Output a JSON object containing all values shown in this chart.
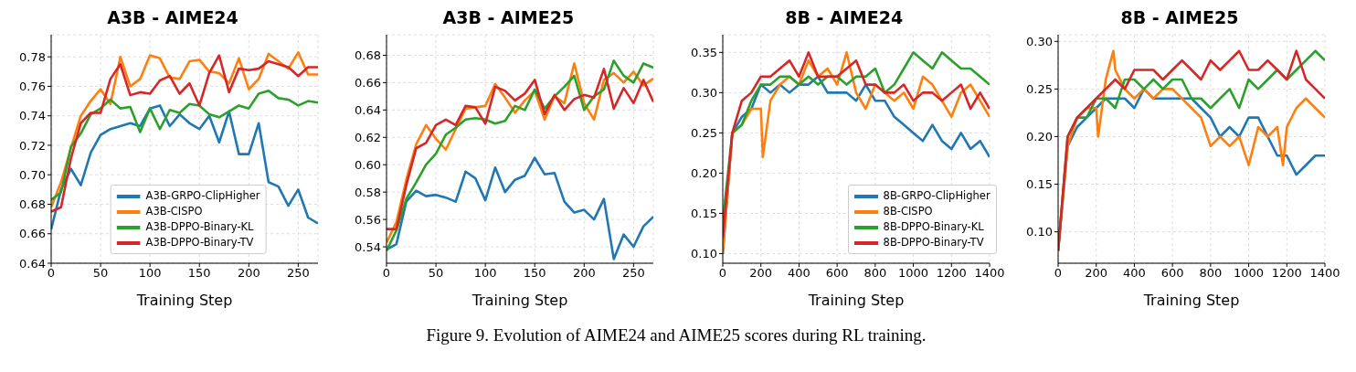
{
  "chart_data": [
    {
      "type": "line",
      "title": "A3B - AIME24",
      "xlabel": "Training Step",
      "xlim": [
        0,
        270
      ],
      "xticks": [
        0,
        50,
        100,
        150,
        200,
        250
      ],
      "ylim": [
        0.64,
        0.795
      ],
      "yticks": [
        0.64,
        0.66,
        0.68,
        {
          "value": 0.7,
          "label": "0.70"
        },
        0.72,
        0.74,
        0.76,
        0.78
      ],
      "grid": true,
      "legend": "bottom",
      "annotations": [
        "Figure 9. Evolution of AIME24 and AIME25 scores during RL training."
      ],
      "x": [
        0,
        10,
        20,
        30,
        40,
        50,
        60,
        70,
        80,
        90,
        100,
        110,
        120,
        130,
        140,
        150,
        160,
        170,
        180,
        190,
        200,
        210,
        220,
        230,
        240,
        250,
        260,
        270
      ],
      "series": [
        {
          "name": "A3B-GRPO-ClipHigher",
          "color": "#1f77b4",
          "values": [
            0.663,
            0.69,
            0.704,
            0.693,
            0.715,
            0.727,
            0.731,
            0.733,
            0.735,
            0.733,
            0.745,
            0.747,
            0.733,
            0.741,
            0.735,
            0.731,
            0.74,
            0.722,
            0.743,
            0.714,
            0.714,
            0.735,
            0.695,
            0.692,
            0.679,
            0.69,
            0.671,
            0.667
          ]
        },
        {
          "name": "A3B-CISPO",
          "color": "#ff7f0e",
          "values": [
            0.678,
            0.695,
            0.718,
            0.74,
            0.75,
            0.758,
            0.748,
            0.78,
            0.76,
            0.765,
            0.781,
            0.779,
            0.766,
            0.765,
            0.777,
            0.778,
            0.77,
            0.769,
            0.762,
            0.779,
            0.758,
            0.765,
            0.782,
            0.777,
            0.772,
            0.783,
            0.768,
            0.768
          ]
        },
        {
          "name": "A3B-DPPO-Binary-KL",
          "color": "#2ca02c",
          "values": [
            0.683,
            0.688,
            0.719,
            0.728,
            0.741,
            0.745,
            0.751,
            0.745,
            0.746,
            0.729,
            0.745,
            0.731,
            0.744,
            0.742,
            0.748,
            0.747,
            0.741,
            0.739,
            0.743,
            0.747,
            0.745,
            0.755,
            0.757,
            0.752,
            0.751,
            0.747,
            0.75,
            0.749
          ]
        },
        {
          "name": "A3B-DPPO-Binary-TV",
          "color": "#d62728",
          "values": [
            0.675,
            0.678,
            0.711,
            0.735,
            0.742,
            0.742,
            0.765,
            0.775,
            0.754,
            0.756,
            0.755,
            0.764,
            0.767,
            0.755,
            0.762,
            0.747,
            0.769,
            0.781,
            0.756,
            0.772,
            0.771,
            0.772,
            0.777,
            0.775,
            0.773,
            0.767,
            0.773,
            0.773
          ]
        }
      ]
    },
    {
      "type": "line",
      "title": "A3B - AIME25",
      "xlabel": "Training Step",
      "xlim": [
        0,
        270
      ],
      "xticks": [
        0,
        50,
        100,
        150,
        200,
        250
      ],
      "ylim": [
        0.528,
        0.695
      ],
      "yticks": [
        0.54,
        0.56,
        0.58,
        {
          "value": 0.6,
          "label": "0.60"
        },
        0.62,
        0.64,
        0.66,
        0.68
      ],
      "grid": true,
      "x": [
        0,
        10,
        20,
        30,
        40,
        50,
        60,
        70,
        80,
        90,
        100,
        110,
        120,
        130,
        140,
        150,
        160,
        170,
        180,
        190,
        200,
        210,
        220,
        230,
        240,
        250,
        260,
        270
      ],
      "series": [
        {
          "color": "#1f77b4",
          "values": [
            0.538,
            0.542,
            0.573,
            0.581,
            0.577,
            0.578,
            0.576,
            0.573,
            0.595,
            0.59,
            0.574,
            0.598,
            0.58,
            0.589,
            0.592,
            0.605,
            0.593,
            0.594,
            0.573,
            0.565,
            0.567,
            0.56,
            0.575,
            0.531,
            0.549,
            0.54,
            0.555,
            0.562
          ]
        },
        {
          "color": "#ff7f0e",
          "values": [
            0.543,
            0.558,
            0.589,
            0.615,
            0.629,
            0.619,
            0.611,
            0.626,
            0.641,
            0.642,
            0.643,
            0.659,
            0.649,
            0.638,
            0.647,
            0.654,
            0.633,
            0.65,
            0.645,
            0.674,
            0.645,
            0.633,
            0.662,
            0.667,
            0.66,
            0.668,
            0.658,
            0.663
          ]
        },
        {
          "color": "#2ca02c",
          "values": [
            0.537,
            0.552,
            0.575,
            0.587,
            0.6,
            0.608,
            0.622,
            0.627,
            0.633,
            0.634,
            0.633,
            0.63,
            0.632,
            0.643,
            0.64,
            0.655,
            0.641,
            0.65,
            0.657,
            0.665,
            0.64,
            0.65,
            0.655,
            0.676,
            0.665,
            0.66,
            0.674,
            0.671
          ]
        },
        {
          "color": "#d62728",
          "values": [
            0.553,
            0.553,
            0.585,
            0.612,
            0.616,
            0.629,
            0.633,
            0.629,
            0.643,
            0.642,
            0.63,
            0.657,
            0.654,
            0.647,
            0.652,
            0.662,
            0.637,
            0.651,
            0.64,
            0.648,
            0.651,
            0.649,
            0.67,
            0.641,
            0.656,
            0.645,
            0.662,
            0.646
          ]
        }
      ]
    },
    {
      "type": "line",
      "title": "8B - AIME24",
      "xlabel": "Training Step",
      "xlim": [
        0,
        1400
      ],
      "xticks": [
        0,
        200,
        400,
        600,
        800,
        1000,
        1200,
        1400
      ],
      "ylim": [
        0.088,
        0.372
      ],
      "yticks": [
        {
          "value": 0.1,
          "label": "0.10"
        },
        0.15,
        {
          "value": 0.2,
          "label": "0.20"
        },
        0.25,
        {
          "value": 0.3,
          "label": "0.30"
        },
        0.35
      ],
      "grid": true,
      "legend": "bottom right",
      "x": [
        0,
        50,
        100,
        150,
        200,
        250,
        300,
        350,
        400,
        450,
        500,
        550,
        600,
        650,
        700,
        750,
        800,
        850,
        900,
        950,
        1000,
        1050,
        1100,
        1150,
        1200,
        1250,
        1300,
        1350,
        1400
      ],
      "series": [
        {
          "name": "8B-GRPO-ClipHigher",
          "color": "#1f77b4",
          "values": [
            0.1,
            0.25,
            0.27,
            0.28,
            0.31,
            0.3,
            0.31,
            0.3,
            0.31,
            0.31,
            0.32,
            0.3,
            0.3,
            0.3,
            0.29,
            0.31,
            0.29,
            0.29,
            0.27,
            0.26,
            0.25,
            0.24,
            0.26,
            0.24,
            0.23,
            0.25,
            0.23,
            0.24,
            0.22
          ]
        },
        {
          "name": "8B-CISPO",
          "color": "#ff7f0e",
          "x": [
            0,
            50,
            100,
            150,
            200,
            210,
            250,
            300,
            350,
            400,
            450,
            500,
            550,
            600,
            650,
            700,
            750,
            800,
            850,
            900,
            950,
            1000,
            1050,
            1100,
            1150,
            1200,
            1250,
            1300,
            1350,
            1400
          ],
          "values": [
            0.1,
            0.25,
            0.26,
            0.28,
            0.28,
            0.22,
            0.29,
            0.31,
            0.32,
            0.31,
            0.34,
            0.32,
            0.33,
            0.31,
            0.35,
            0.3,
            0.28,
            0.31,
            0.3,
            0.29,
            0.3,
            0.28,
            0.32,
            0.31,
            0.29,
            0.27,
            0.3,
            0.31,
            0.29,
            0.27
          ]
        },
        {
          "name": "8B-DPPO-Binary-KL",
          "color": "#2ca02c",
          "values": [
            0.14,
            0.25,
            0.26,
            0.29,
            0.31,
            0.31,
            0.32,
            0.32,
            0.31,
            0.32,
            0.31,
            0.32,
            0.32,
            0.31,
            0.32,
            0.32,
            0.33,
            0.3,
            0.31,
            0.33,
            0.35,
            0.34,
            0.33,
            0.35,
            0.34,
            0.33,
            0.33,
            0.32,
            0.31
          ]
        },
        {
          "name": "8B-DPPO-Binary-TV",
          "color": "#d62728",
          "values": [
            0.12,
            0.25,
            0.29,
            0.3,
            0.32,
            0.32,
            0.33,
            0.34,
            0.32,
            0.35,
            0.32,
            0.32,
            0.32,
            0.33,
            0.34,
            0.31,
            0.31,
            0.3,
            0.3,
            0.31,
            0.29,
            0.3,
            0.3,
            0.29,
            0.3,
            0.31,
            0.28,
            0.3,
            0.28
          ]
        }
      ]
    },
    {
      "type": "line",
      "title": "8B - AIME25",
      "xlabel": "Training Step",
      "xlim": [
        0,
        1400
      ],
      "xticks": [
        0,
        200,
        400,
        600,
        800,
        1000,
        1200,
        1400
      ],
      "ylim": [
        0.067,
        0.307
      ],
      "yticks": [
        {
          "value": 0.1,
          "label": "0.10"
        },
        0.15,
        {
          "value": 0.2,
          "label": "0.20"
        },
        0.25,
        {
          "value": 0.3,
          "label": "0.30"
        }
      ],
      "grid": true,
      "x": [
        0,
        50,
        100,
        150,
        200,
        250,
        300,
        350,
        400,
        450,
        500,
        550,
        600,
        650,
        700,
        750,
        800,
        850,
        900,
        950,
        1000,
        1050,
        1100,
        1150,
        1200,
        1250,
        1300,
        1350,
        1400
      ],
      "series": [
        {
          "color": "#1f77b4",
          "values": [
            0.08,
            0.19,
            0.21,
            0.22,
            0.23,
            0.24,
            0.24,
            0.24,
            0.23,
            0.25,
            0.24,
            0.24,
            0.24,
            0.24,
            0.24,
            0.23,
            0.22,
            0.2,
            0.21,
            0.2,
            0.22,
            0.22,
            0.2,
            0.18,
            0.18,
            0.16,
            0.17,
            0.18,
            0.18
          ]
        },
        {
          "color": "#ff7f0e",
          "x": [
            0,
            50,
            100,
            150,
            200,
            210,
            250,
            290,
            300,
            350,
            400,
            450,
            500,
            550,
            600,
            650,
            700,
            750,
            800,
            850,
            900,
            950,
            1000,
            1050,
            1100,
            1150,
            1180,
            1200,
            1250,
            1300,
            1350,
            1400
          ],
          "values": [
            0.08,
            0.19,
            0.22,
            0.23,
            0.23,
            0.2,
            0.26,
            0.29,
            0.27,
            0.25,
            0.24,
            0.25,
            0.24,
            0.25,
            0.25,
            0.24,
            0.23,
            0.22,
            0.19,
            0.2,
            0.19,
            0.2,
            0.17,
            0.21,
            0.2,
            0.21,
            0.17,
            0.21,
            0.23,
            0.24,
            0.23,
            0.22
          ]
        },
        {
          "color": "#2ca02c",
          "values": [
            0.08,
            0.2,
            0.22,
            0.22,
            0.24,
            0.24,
            0.23,
            0.26,
            0.26,
            0.25,
            0.26,
            0.25,
            0.26,
            0.26,
            0.24,
            0.24,
            0.23,
            0.24,
            0.25,
            0.23,
            0.26,
            0.25,
            0.26,
            0.27,
            0.26,
            0.27,
            0.28,
            0.29,
            0.28
          ]
        },
        {
          "color": "#d62728",
          "values": [
            0.08,
            0.2,
            0.22,
            0.23,
            0.24,
            0.25,
            0.26,
            0.25,
            0.27,
            0.27,
            0.27,
            0.26,
            0.27,
            0.28,
            0.27,
            0.26,
            0.28,
            0.27,
            0.28,
            0.29,
            0.27,
            0.27,
            0.28,
            0.27,
            0.26,
            0.29,
            0.26,
            0.25,
            0.24
          ]
        }
      ]
    }
  ]
}
